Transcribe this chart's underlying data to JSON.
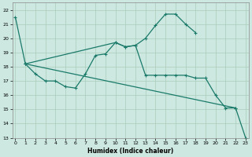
{
  "xlabel": "Humidex (Indice chaleur)",
  "bg_color": "#cce8e0",
  "line_color": "#1a7a6a",
  "grid_color": "#aaccbb",
  "ylim": [
    13,
    22.5
  ],
  "xlim": [
    -0.3,
    23.3
  ],
  "line1_x": [
    0,
    1,
    10,
    11,
    12,
    13,
    14,
    15,
    16,
    17,
    18
  ],
  "line1_y": [
    21.5,
    18.2,
    19.7,
    19.4,
    19.5,
    20.0,
    20.9,
    21.7,
    21.7,
    21.0,
    20.4
  ],
  "line2_x": [
    1,
    2,
    3,
    4,
    5,
    6,
    7,
    8,
    9,
    10,
    11,
    12,
    13,
    14,
    15,
    16,
    17,
    18,
    19,
    20,
    21,
    22
  ],
  "line2_y": [
    18.2,
    17.5,
    17.0,
    17.0,
    16.6,
    16.5,
    17.5,
    18.8,
    18.9,
    19.7,
    19.4,
    19.5,
    17.4,
    17.4,
    17.4,
    17.4,
    17.4,
    17.2,
    17.2,
    16.0,
    15.1,
    15.1
  ],
  "line3_x": [
    1,
    22,
    23
  ],
  "line3_y": [
    18.2,
    15.1,
    13.0
  ],
  "yticks": [
    13,
    14,
    15,
    16,
    17,
    18,
    19,
    20,
    21,
    22
  ],
  "xticks": [
    0,
    1,
    2,
    3,
    4,
    5,
    6,
    7,
    8,
    9,
    10,
    11,
    12,
    13,
    14,
    15,
    16,
    17,
    18,
    19,
    20,
    21,
    22,
    23
  ]
}
